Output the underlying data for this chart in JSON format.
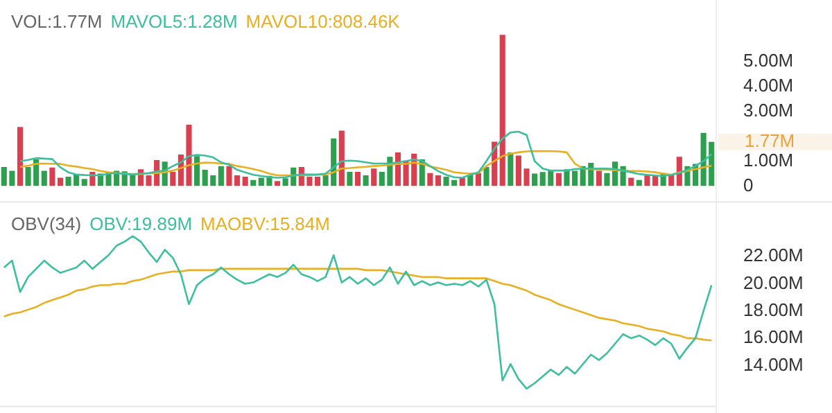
{
  "chart_data": [
    {
      "type": "bar",
      "title": "VOL:1.77M",
      "legend": "top left",
      "grid": false,
      "tick_labels": "y",
      "marker": "none",
      "line_style": "solid",
      "categories": [
        null,
        null,
        null,
        null,
        null,
        null,
        null,
        null,
        null,
        null,
        null,
        null,
        null,
        null,
        null,
        null,
        null,
        null,
        null,
        null,
        null,
        null,
        null,
        null,
        null,
        null,
        null,
        null,
        null,
        null,
        null,
        null,
        null,
        null,
        null,
        null,
        null,
        null,
        null,
        null,
        null,
        null,
        null,
        null,
        null,
        null,
        null,
        null,
        null,
        null,
        null,
        null,
        null,
        null,
        null,
        null,
        null,
        null,
        null,
        null,
        null,
        null,
        null,
        null,
        null,
        null,
        null,
        null,
        null,
        null,
        null,
        null,
        null,
        null,
        null,
        null,
        null,
        null,
        null,
        null,
        null,
        null,
        null,
        null,
        null,
        null,
        null,
        null,
        null
      ],
      "ylim": [
        0,
        6.2
      ],
      "yticks": [
        {
          "value": 0,
          "label": "0"
        },
        {
          "value": 1,
          "label": "1.00M"
        },
        {
          "value": 3,
          "label": "3.00M"
        },
        {
          "value": 4,
          "label": "4.00M"
        },
        {
          "value": 5,
          "label": "5.00M"
        }
      ],
      "annotations": [
        "1.77M"
      ],
      "series": [
        {
          "type": "bar",
          "values": [
            0.76,
            0.61,
            2.37,
            0.76,
            1.07,
            0.61,
            0.74,
            0.33,
            0.37,
            0.46,
            0.28,
            0.57,
            0.5,
            0.57,
            0.61,
            0.59,
            0.46,
            0.67,
            0.43,
            1.04,
            0.98,
            0.57,
            1.26,
            2.46,
            1.2,
            0.65,
            0.43,
            0.8,
            0.8,
            0.43,
            0.37,
            0.24,
            0.33,
            0.41,
            0.2,
            0.31,
            0.74,
            0.76,
            0.37,
            0.37,
            0.43,
            1.91,
            2.22,
            0.57,
            0.57,
            0.43,
            0.7,
            0.57,
            1.17,
            1.35,
            1.02,
            1.3,
            1.07,
            0.52,
            0.43,
            0.37,
            0.24,
            0.33,
            0.46,
            0.52,
            0.76,
            1.78,
            6.07,
            1.35,
            1.22,
            0.7,
            0.5,
            0.56,
            0.61,
            0.52,
            0.67,
            0.61,
            0.8,
            0.93,
            0.61,
            0.52,
            0.98,
            0.8,
            0.33,
            0.24,
            0.43,
            0.43,
            0.52,
            0.43,
            1.17,
            0.8,
            0.89,
            2.13,
            1.77
          ],
          "colors": [
            "#2e9e4f",
            "#2e9e4f",
            "#d9404f",
            "#2e9e4f",
            "#2e9e4f",
            "#2e9e4f",
            "#d9404f",
            "#d9404f",
            "#2e9e4f",
            "#2e9e4f",
            "#2e9e4f",
            "#d9404f",
            "#2e9e4f",
            "#2e9e4f",
            "#2e9e4f",
            "#2e9e4f",
            "#2e9e4f",
            "#d9404f",
            "#d9404f",
            "#d9404f",
            "#2e9e4f",
            "#d9404f",
            "#d9404f",
            "#d9404f",
            "#2e9e4f",
            "#2e9e4f",
            "#2e9e4f",
            "#2e9e4f",
            "#d9404f",
            "#d9404f",
            "#d9404f",
            "#2e9e4f",
            "#2e9e4f",
            "#2e9e4f",
            "#d9404f",
            "#2e9e4f",
            "#2e9e4f",
            "#d9404f",
            "#d9404f",
            "#d9404f",
            "#2e9e4f",
            "#2e9e4f",
            "#d9404f",
            "#2e9e4f",
            "#d9404f",
            "#2e9e4f",
            "#d9404f",
            "#2e9e4f",
            "#2e9e4f",
            "#d9404f",
            "#d9404f",
            "#d9404f",
            "#2e9e4f",
            "#d9404f",
            "#d9404f",
            "#2e9e4f",
            "#2e9e4f",
            "#d9404f",
            "#2e9e4f",
            "#d9404f",
            "#2e9e4f",
            "#d9404f",
            "#d9404f",
            "#2e9e4f",
            "#d9404f",
            "#d9404f",
            "#2e9e4f",
            "#2e9e4f",
            "#2e9e4f",
            "#d9404f",
            "#2e9e4f",
            "#2e9e4f",
            "#2e9e4f",
            "#2e9e4f",
            "#d9404f",
            "#2e9e4f",
            "#2e9e4f",
            "#2e9e4f",
            "#d9404f",
            "#2e9e4f",
            "#d9404f",
            "#d9404f",
            "#2e9e4f",
            "#d9404f",
            "#d9404f",
            "#2e9e4f",
            "#2e9e4f",
            "#2e9e4f",
            "#2e9e4f"
          ]
        },
        {
          "type": "line",
          "name": "MAVOL5:1.28M",
          "color": "#3bbf9f",
          "values": [
            null,
            null,
            1.0,
            1.05,
            1.12,
            1.1,
            1.08,
            0.75,
            0.55,
            0.46,
            0.44,
            0.43,
            0.43,
            0.5,
            0.52,
            0.48,
            0.46,
            0.5,
            0.52,
            0.58,
            0.62,
            0.8,
            0.95,
            1.2,
            1.25,
            1.22,
            1.15,
            0.95,
            0.85,
            0.65,
            0.55,
            0.45,
            0.4,
            0.36,
            0.33,
            0.35,
            0.42,
            0.46,
            0.46,
            0.46,
            0.5,
            0.75,
            1.0,
            1.02,
            1.0,
            0.95,
            0.9,
            0.9,
            0.9,
            0.95,
            1.0,
            1.07,
            1.0,
            0.8,
            0.6,
            0.45,
            0.35,
            0.33,
            0.45,
            0.55,
            1.0,
            1.5,
            1.9,
            2.15,
            2.18,
            2.05,
            1.0,
            0.7,
            0.62,
            0.62,
            0.62,
            0.68,
            0.7,
            0.7,
            0.7,
            0.7,
            0.68,
            0.62,
            0.55,
            0.48,
            0.45,
            0.42,
            0.4,
            0.45,
            0.52,
            0.65,
            0.8,
            1.0,
            1.28
          ]
        },
        {
          "type": "line",
          "name": "MAVOL10:808.46K",
          "color": "#e8b020",
          "values": [
            null,
            null,
            0.76,
            0.82,
            0.89,
            0.9,
            0.89,
            0.89,
            0.82,
            0.78,
            0.72,
            0.68,
            0.6,
            0.55,
            0.52,
            0.5,
            0.48,
            0.48,
            0.5,
            0.52,
            0.55,
            0.62,
            0.72,
            0.83,
            0.9,
            0.94,
            0.93,
            0.9,
            0.89,
            0.8,
            0.75,
            0.68,
            0.6,
            0.5,
            0.43,
            0.43,
            0.43,
            0.43,
            0.43,
            0.45,
            0.46,
            0.55,
            0.7,
            0.72,
            0.75,
            0.77,
            0.8,
            0.82,
            0.85,
            0.88,
            0.89,
            0.94,
            0.89,
            0.78,
            0.72,
            0.65,
            0.55,
            0.52,
            0.5,
            0.52,
            0.8,
            1.0,
            1.2,
            1.3,
            1.35,
            1.39,
            1.4,
            1.4,
            1.4,
            1.39,
            1.35,
            0.9,
            0.7,
            0.68,
            0.65,
            0.65,
            0.63,
            0.62,
            0.6,
            0.6,
            0.58,
            0.55,
            0.5,
            0.45,
            0.55,
            0.6,
            0.68,
            0.75,
            0.81
          ]
        }
      ]
    },
    {
      "type": "line",
      "title": "OBV(34)",
      "legend": "top left",
      "grid": false,
      "tick_labels": "y",
      "marker": "none",
      "line_style": "solid",
      "categories": [
        null,
        null,
        null,
        null,
        null,
        null,
        null,
        null,
        null,
        null,
        null,
        null,
        null,
        null,
        null,
        null,
        null,
        null,
        null,
        null,
        null,
        null,
        null,
        null,
        null,
        null,
        null,
        null,
        null,
        null,
        null,
        null,
        null,
        null,
        null,
        null,
        null,
        null,
        null,
        null,
        null,
        null,
        null,
        null,
        null,
        null,
        null,
        null,
        null,
        null,
        null,
        null,
        null,
        null,
        null,
        null,
        null,
        null,
        null,
        null,
        null,
        null,
        null,
        null,
        null,
        null,
        null,
        null,
        null,
        null,
        null,
        null,
        null,
        null,
        null,
        null,
        null,
        null,
        null,
        null,
        null,
        null,
        null,
        null,
        null,
        null,
        null,
        null,
        null
      ],
      "ylim": [
        11,
        26
      ],
      "yticks": [
        {
          "value": 14,
          "label": "14.00M"
        },
        {
          "value": 16,
          "label": "16.00M"
        },
        {
          "value": 18,
          "label": "18.00M"
        },
        {
          "value": 20,
          "label": "20.00M"
        },
        {
          "value": 22,
          "label": "22.00M"
        }
      ],
      "series": [
        {
          "name": "OBV:19.89M",
          "color": "#3bbf9f",
          "values": [
            21.2,
            21.7,
            19.4,
            20.5,
            21.1,
            21.7,
            21.2,
            20.8,
            21.0,
            21.2,
            21.7,
            21.1,
            21.6,
            22.1,
            22.8,
            23.1,
            23.5,
            23.1,
            22.3,
            21.6,
            22.5,
            21.9,
            20.7,
            18.5,
            19.9,
            20.4,
            20.7,
            21.2,
            20.7,
            20.3,
            20.0,
            20.1,
            20.4,
            20.7,
            20.5,
            20.8,
            21.4,
            20.7,
            20.5,
            20.2,
            20.5,
            22.1,
            20.1,
            20.5,
            20.0,
            20.4,
            19.9,
            20.3,
            21.2,
            20.0,
            20.9,
            19.9,
            20.2,
            19.9,
            20.1,
            19.9,
            20.0,
            19.9,
            20.2,
            19.8,
            20.3,
            18.5,
            12.9,
            14.1,
            13.0,
            12.3,
            12.7,
            13.2,
            13.7,
            13.3,
            13.9,
            13.4,
            14.1,
            14.8,
            14.4,
            14.9,
            15.6,
            16.3,
            16.0,
            16.2,
            15.9,
            15.5,
            16.0,
            15.6,
            14.5,
            15.3,
            16.0,
            18.0,
            19.89
          ]
        },
        {
          "name": "MAOBV:15.84M",
          "color": "#e8b020",
          "values": [
            17.6,
            17.8,
            17.9,
            18.1,
            18.3,
            18.6,
            18.8,
            19.0,
            19.2,
            19.5,
            19.6,
            19.8,
            19.9,
            19.9,
            20.0,
            20.0,
            20.2,
            20.3,
            20.5,
            20.7,
            20.8,
            20.9,
            20.9,
            21.0,
            21.0,
            21.0,
            21.0,
            21.1,
            21.1,
            21.1,
            21.1,
            21.1,
            21.1,
            21.1,
            21.1,
            21.1,
            21.1,
            21.1,
            21.1,
            21.1,
            21.1,
            21.1,
            21.1,
            21.1,
            21.1,
            21.0,
            21.0,
            21.0,
            20.9,
            20.8,
            20.7,
            20.6,
            20.5,
            20.5,
            20.5,
            20.4,
            20.4,
            20.4,
            20.4,
            20.4,
            20.4,
            20.2,
            20.0,
            19.9,
            19.7,
            19.5,
            19.2,
            19.0,
            18.8,
            18.5,
            18.3,
            18.1,
            17.9,
            17.7,
            17.5,
            17.4,
            17.3,
            17.1,
            17.0,
            16.9,
            16.7,
            16.6,
            16.5,
            16.3,
            16.2,
            16.0,
            16.0,
            15.9,
            15.84
          ]
        }
      ]
    }
  ]
}
